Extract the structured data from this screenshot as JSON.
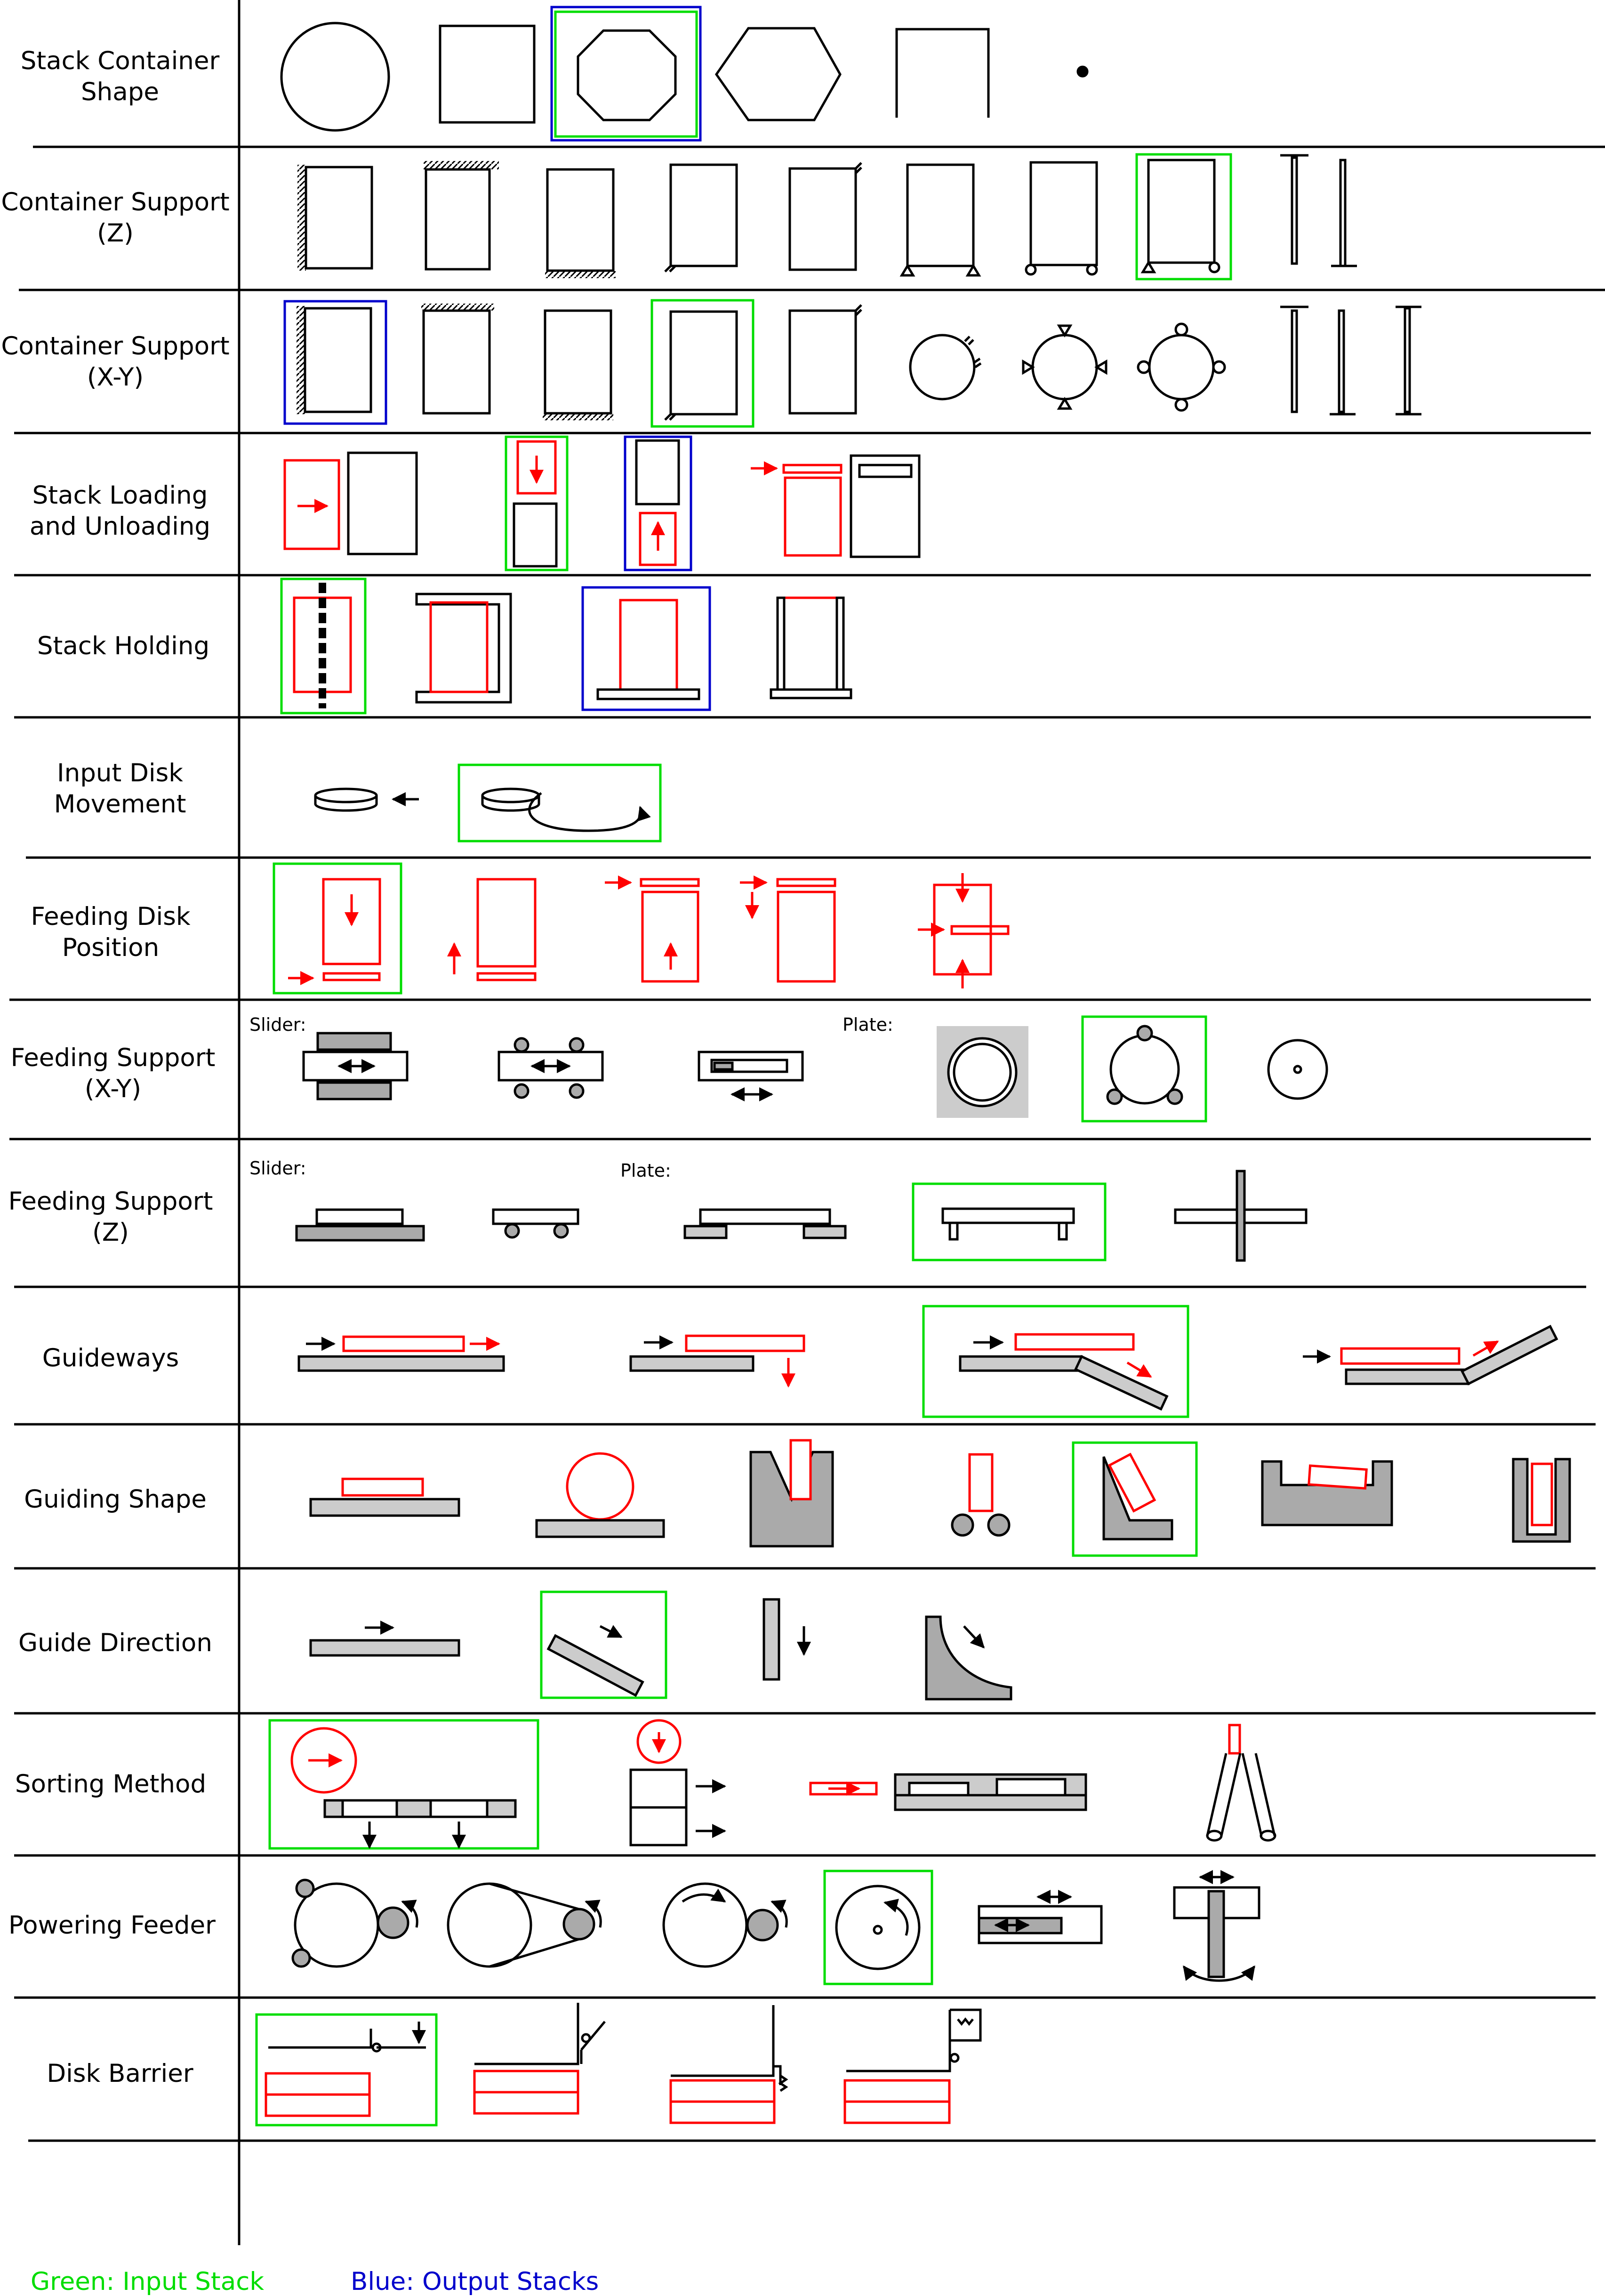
{
  "categories": [
    {
      "label_lines": [
        "Stack Container",
        "Shape"
      ]
    },
    {
      "label_lines": [
        "Container Support",
        "(Z)"
      ]
    },
    {
      "label_lines": [
        "Container Support",
        "(X-Y)"
      ]
    },
    {
      "label_lines": [
        "Stack Loading",
        "and Unloading"
      ]
    },
    {
      "label_lines": [
        "Stack Holding"
      ]
    },
    {
      "label_lines": [
        "Input Disk",
        "Movement"
      ]
    },
    {
      "label_lines": [
        "Feeding Disk",
        "Position"
      ]
    },
    {
      "label_lines": [
        "Feeding Support",
        "(X-Y)"
      ]
    },
    {
      "label_lines": [
        "Feeding Support",
        "(Z)"
      ]
    },
    {
      "label_lines": [
        "Guideways"
      ]
    },
    {
      "label_lines": [
        "Guiding Shape"
      ]
    },
    {
      "label_lines": [
        "Guide Direction"
      ]
    },
    {
      "label_lines": [
        "Sorting Method"
      ]
    },
    {
      "label_lines": [
        "Powering Feeder"
      ]
    },
    {
      "label_lines": [
        "Disk Barrier"
      ]
    }
  ],
  "sub_labels": {
    "slider": "Slider:",
    "plate": "Plate:"
  },
  "legend": {
    "input_label": "Green: Input Stack",
    "output_label": "Blue: Output Stacks"
  },
  "colors": {
    "input": "#00dd00",
    "output": "#0000cc",
    "disk": "#ff0000",
    "gray": "#cccccc",
    "dark_gray": "#aaaaaa"
  }
}
